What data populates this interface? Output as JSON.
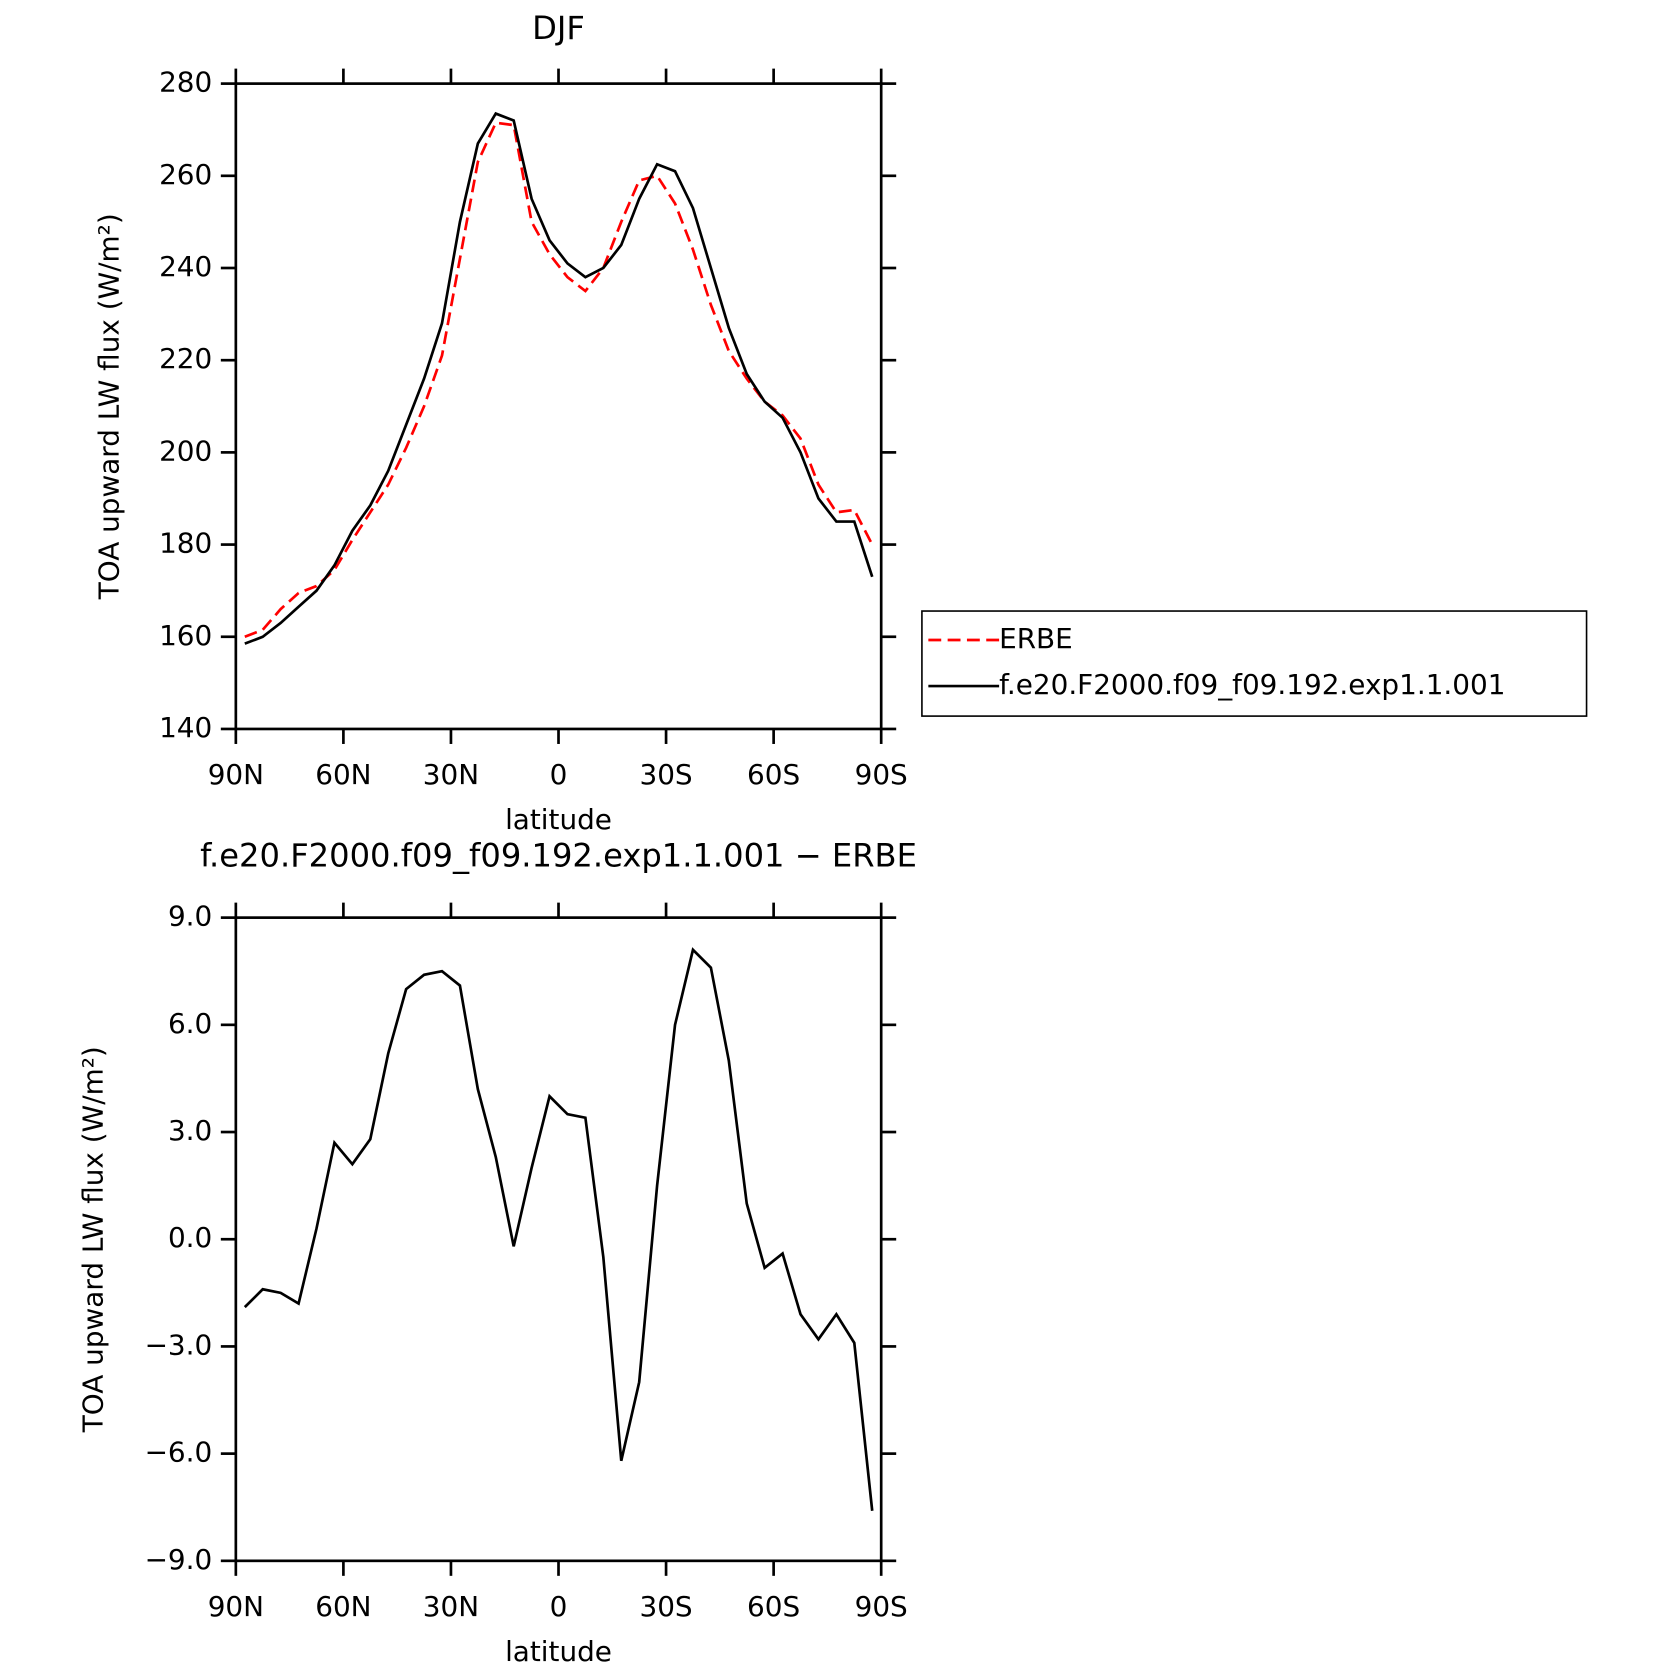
{
  "chart_data": [
    {
      "type": "line",
      "title": "DJF",
      "xlabel": "latitude",
      "ylabel": "TOA upward LW flux (W/m²)",
      "x": [
        87.5,
        82.5,
        77.5,
        72.5,
        67.5,
        62.5,
        57.5,
        52.5,
        47.5,
        42.5,
        37.5,
        32.5,
        27.5,
        22.5,
        17.5,
        12.5,
        7.5,
        2.5,
        -2.5,
        -7.5,
        -12.5,
        -17.5,
        -22.5,
        -27.5,
        -32.5,
        -37.5,
        -42.5,
        -47.5,
        -52.5,
        -57.5,
        -62.5,
        -67.5,
        -72.5,
        -77.5,
        -82.5,
        -87.5
      ],
      "series": [
        {
          "name": "ERBE",
          "color": "#ff0000",
          "dashed": true,
          "values": [
            160,
            161.5,
            166,
            169.5,
            171,
            174.5,
            181,
            187,
            193,
            201,
            210,
            221,
            242,
            263,
            271.5,
            271,
            250,
            243,
            238,
            235,
            240,
            250,
            259,
            260,
            254,
            244,
            232,
            222,
            216,
            211,
            208,
            203,
            193,
            187,
            187.5,
            180
          ]
        },
        {
          "name": "f.e20.F2000.f09_f09.192.exp1.1.001",
          "color": "#000000",
          "dashed": false,
          "values": [
            158.5,
            160,
            163,
            166.5,
            170,
            175.5,
            183,
            188.5,
            196,
            206,
            216,
            228,
            250,
            267,
            273.5,
            272,
            255,
            246,
            241,
            238,
            240,
            245,
            255,
            262.5,
            261,
            253,
            240,
            227,
            217,
            211,
            207.5,
            200,
            190,
            185,
            185,
            173
          ]
        }
      ],
      "xlim": [
        90,
        -90
      ],
      "xticks": [
        {
          "value": 90,
          "label": "90N"
        },
        {
          "value": 60,
          "label": "60N"
        },
        {
          "value": 30,
          "label": "30N"
        },
        0,
        {
          "value": -30,
          "label": "30S"
        },
        {
          "value": -60,
          "label": "60S"
        },
        {
          "value": -90,
          "label": "90S"
        }
      ],
      "ylim": [
        140,
        280
      ],
      "yticks": [
        140,
        160,
        180,
        200,
        220,
        240,
        260,
        280
      ],
      "legend": "right"
    },
    {
      "type": "line",
      "title": "f.e20.F2000.f09_f09.192.exp1.1.001 − ERBE",
      "xlabel": "latitude",
      "ylabel": "TOA upward LW flux (W/m²)",
      "x": [
        87.5,
        82.5,
        77.5,
        72.5,
        67.5,
        62.5,
        57.5,
        52.5,
        47.5,
        42.5,
        37.5,
        32.5,
        27.5,
        22.5,
        17.5,
        12.5,
        7.5,
        2.5,
        -2.5,
        -7.5,
        -12.5,
        -17.5,
        -22.5,
        -27.5,
        -32.5,
        -37.5,
        -42.5,
        -47.5,
        -52.5,
        -57.5,
        -62.5,
        -67.5,
        -72.5,
        -77.5,
        -82.5,
        -87.5
      ],
      "series": [
        {
          "color": "#000000",
          "dashed": false,
          "values": [
            -1.9,
            -1.4,
            -1.5,
            -1.8,
            0.3,
            2.7,
            2.1,
            2.8,
            5.2,
            7.0,
            7.4,
            7.5,
            7.1,
            4.2,
            2.3,
            -0.2,
            2.0,
            4.0,
            3.5,
            3.4,
            -0.5,
            -6.2,
            -4.0,
            1.5,
            6.0,
            8.1,
            7.6,
            5.0,
            1.0,
            -0.8,
            -0.4,
            -2.1,
            -2.8,
            -2.1,
            -2.9,
            -7.6
          ]
        }
      ],
      "xlim": [
        90,
        -90
      ],
      "xticks": [
        {
          "value": 90,
          "label": "90N"
        },
        {
          "value": 60,
          "label": "60N"
        },
        {
          "value": 30,
          "label": "30N"
        },
        0,
        {
          "value": -30,
          "label": "30S"
        },
        {
          "value": -60,
          "label": "60S"
        },
        {
          "value": -90,
          "label": "90S"
        }
      ],
      "ylim": [
        -9,
        9
      ],
      "yticks": [
        {
          "value": -9,
          "label": "−9.0"
        },
        {
          "value": -6,
          "label": "−6.0"
        },
        {
          "value": -3,
          "label": "−3.0"
        },
        {
          "value": 0,
          "label": "0.0"
        },
        {
          "value": 3,
          "label": "3.0"
        },
        {
          "value": 6,
          "label": "6.0"
        },
        {
          "value": 9,
          "label": "9.0"
        }
      ]
    }
  ]
}
